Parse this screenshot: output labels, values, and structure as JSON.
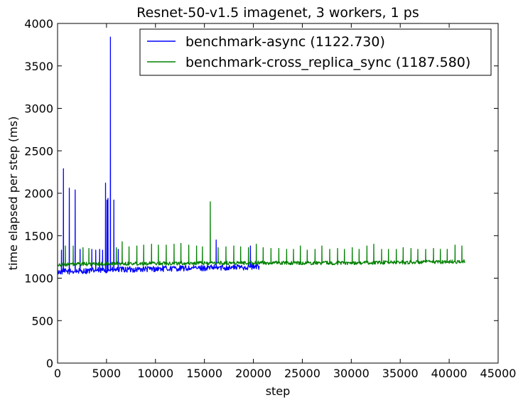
{
  "chart_data": {
    "type": "line",
    "title": "Resnet-50-v1.5 imagenet, 3 workers, 1 ps",
    "xlabel": "step",
    "ylabel": "time elapsed per step (ms)",
    "xlim": [
      0,
      45000
    ],
    "ylim": [
      0,
      4000
    ],
    "xticks": [
      0,
      5000,
      10000,
      15000,
      20000,
      25000,
      30000,
      35000,
      40000,
      45000
    ],
    "yticks": [
      0,
      500,
      1000,
      1500,
      2000,
      2500,
      3000,
      3500,
      4000
    ],
    "grid": false,
    "legend_position": "top-right",
    "series": [
      {
        "name": "benchmark-async (1122.730)",
        "color": "#0000ff",
        "x_start": 0,
        "x_end": 20600,
        "baseline": [
          [
            0,
            1075
          ],
          [
            5000,
            1095
          ],
          [
            10000,
            1110
          ],
          [
            15000,
            1120
          ],
          [
            20600,
            1135
          ]
        ],
        "noise": 35,
        "spikes": [
          [
            400,
            1330
          ],
          [
            600,
            2290
          ],
          [
            1200,
            2060
          ],
          [
            1800,
            2040
          ],
          [
            2300,
            1340
          ],
          [
            3500,
            1340
          ],
          [
            3900,
            1330
          ],
          [
            4300,
            1340
          ],
          [
            4600,
            1330
          ],
          [
            4900,
            2120
          ],
          [
            5050,
            1920
          ],
          [
            5150,
            1940
          ],
          [
            5400,
            3840
          ],
          [
            5750,
            1920
          ],
          [
            6200,
            1340
          ],
          [
            16200,
            1450
          ],
          [
            19700,
            1380
          ]
        ]
      },
      {
        "name": "benchmark-cross_replica_sync (1187.580)",
        "color": "#008000",
        "x_start": 0,
        "x_end": 41600,
        "baseline": [
          [
            0,
            1160
          ],
          [
            5000,
            1170
          ],
          [
            10000,
            1175
          ],
          [
            20000,
            1180
          ],
          [
            30000,
            1180
          ],
          [
            41600,
            1195
          ]
        ],
        "noise": 22,
        "spikes": [
          [
            800,
            1380
          ],
          [
            1600,
            1380
          ],
          [
            2600,
            1360
          ],
          [
            3200,
            1350
          ],
          [
            6000,
            1360
          ],
          [
            6600,
            1430
          ],
          [
            7300,
            1370
          ],
          [
            8100,
            1380
          ],
          [
            8800,
            1390
          ],
          [
            9600,
            1400
          ],
          [
            10300,
            1390
          ],
          [
            11100,
            1390
          ],
          [
            11900,
            1400
          ],
          [
            12600,
            1410
          ],
          [
            13400,
            1390
          ],
          [
            14200,
            1380
          ],
          [
            14800,
            1370
          ],
          [
            15600,
            1900
          ],
          [
            16400,
            1360
          ],
          [
            17200,
            1370
          ],
          [
            18000,
            1380
          ],
          [
            18700,
            1370
          ],
          [
            19500,
            1360
          ],
          [
            20300,
            1400
          ],
          [
            21000,
            1360
          ],
          [
            21800,
            1350
          ],
          [
            22600,
            1350
          ],
          [
            23400,
            1340
          ],
          [
            24100,
            1340
          ],
          [
            24800,
            1380
          ],
          [
            25500,
            1330
          ],
          [
            26300,
            1340
          ],
          [
            27000,
            1380
          ],
          [
            27800,
            1340
          ],
          [
            28600,
            1350
          ],
          [
            29300,
            1340
          ],
          [
            30100,
            1360
          ],
          [
            30800,
            1340
          ],
          [
            31600,
            1380
          ],
          [
            32300,
            1400
          ],
          [
            33100,
            1340
          ],
          [
            33800,
            1340
          ],
          [
            34600,
            1340
          ],
          [
            35300,
            1360
          ],
          [
            36100,
            1350
          ],
          [
            36800,
            1340
          ],
          [
            37600,
            1340
          ],
          [
            38400,
            1350
          ],
          [
            39100,
            1340
          ],
          [
            39800,
            1340
          ],
          [
            40600,
            1390
          ],
          [
            41300,
            1380
          ]
        ]
      }
    ]
  }
}
